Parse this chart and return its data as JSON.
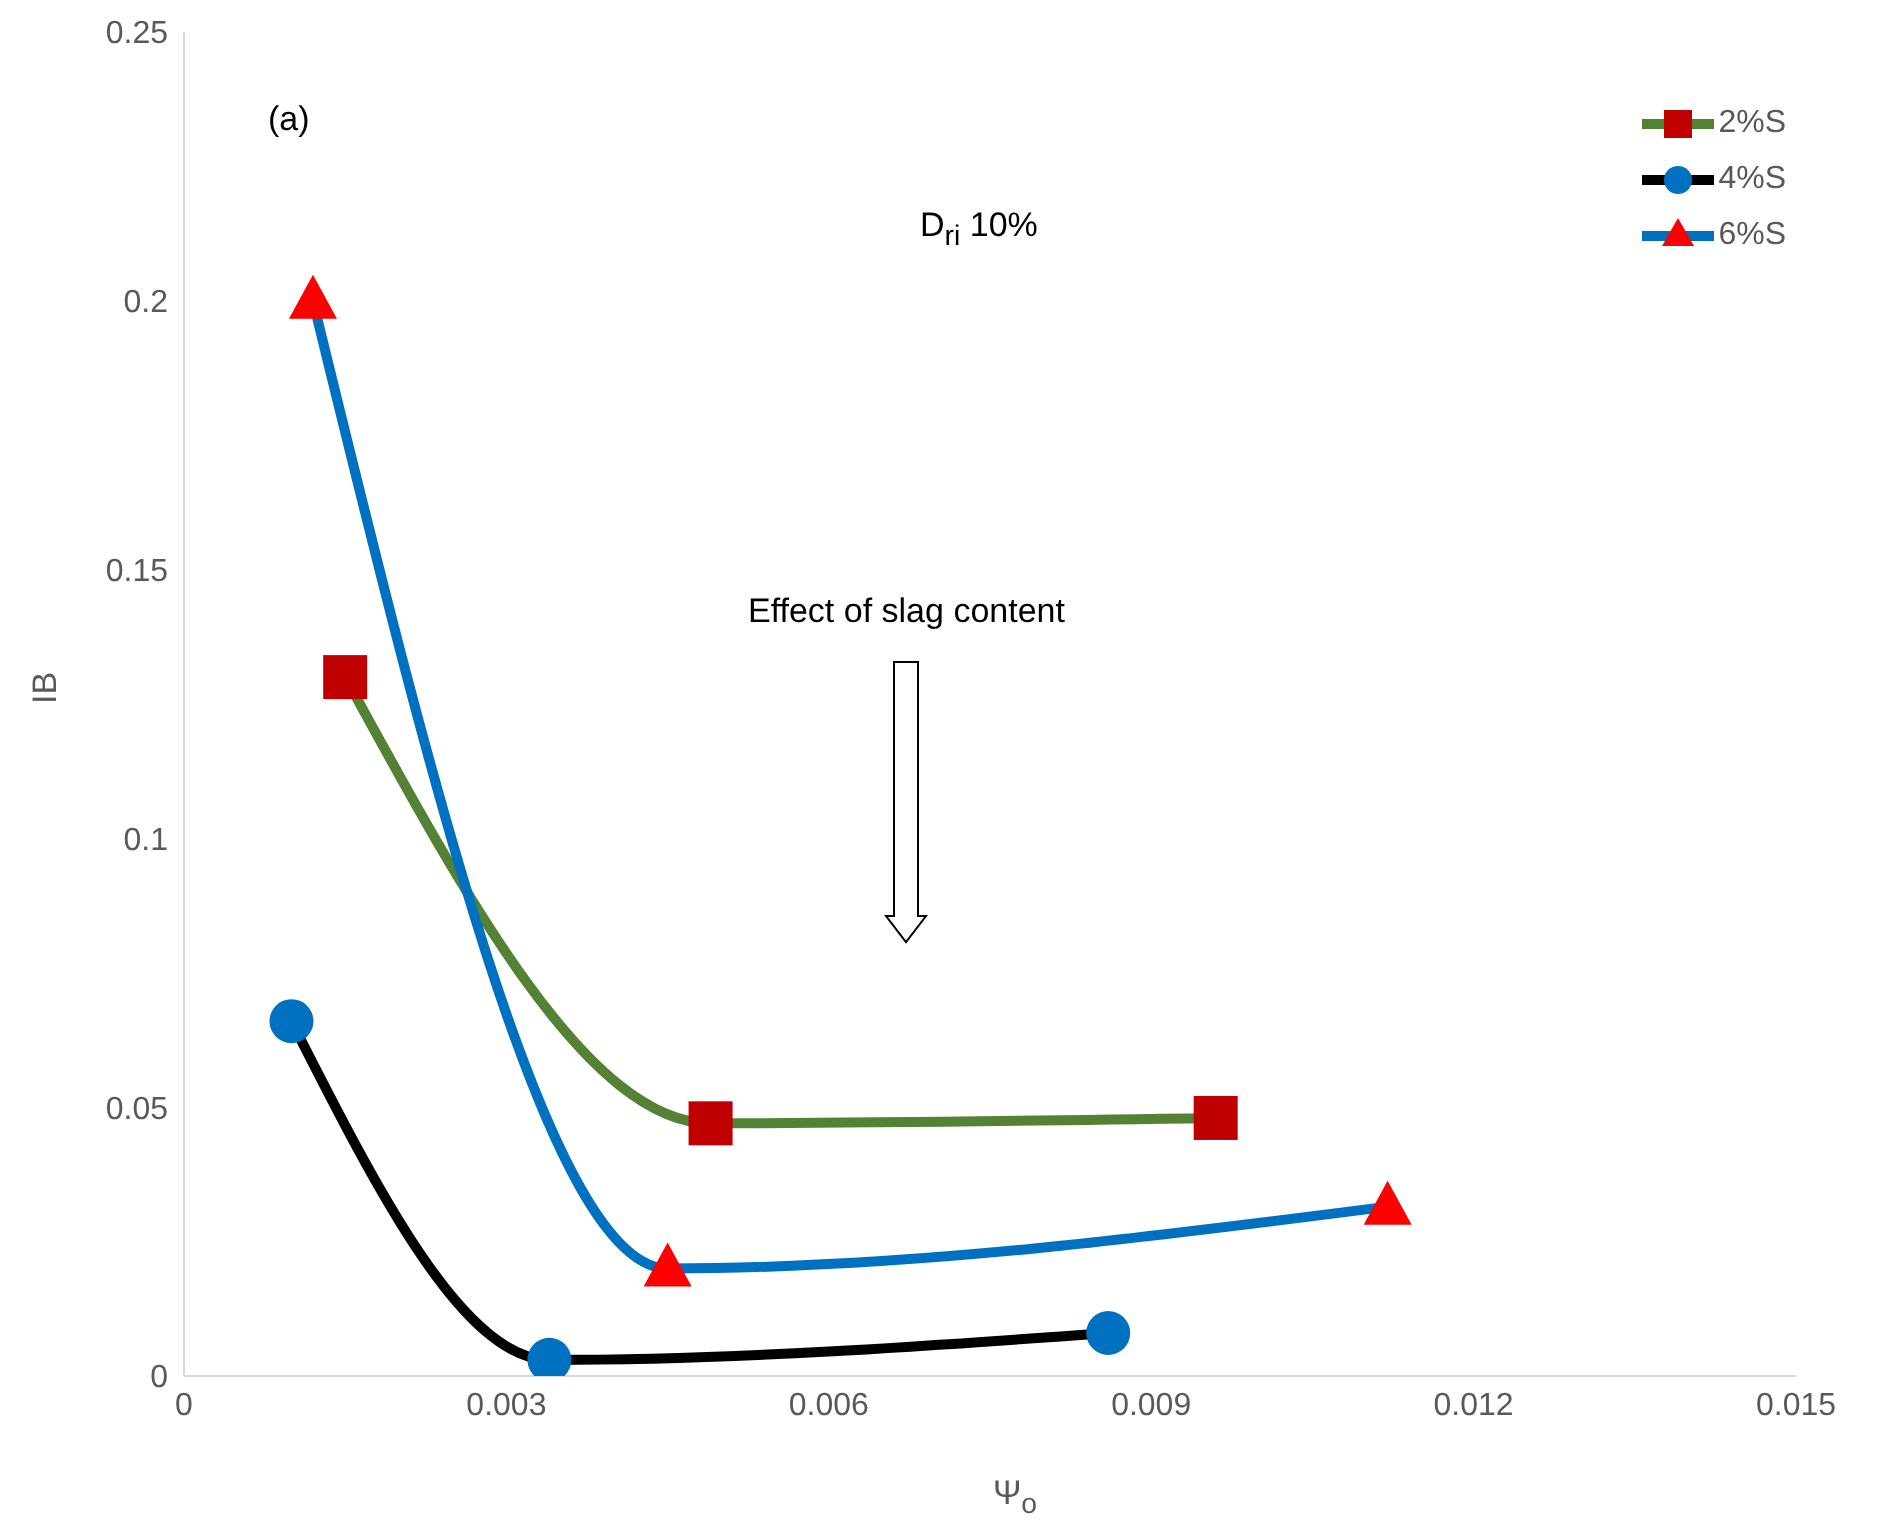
{
  "chart_data": {
    "type": "line",
    "xlabel": "Ψ$_{o}$",
    "ylabel": "IB",
    "annotations": [
      "(a)",
      "D$_{ri}$ 10%",
      "Effect of slag content"
    ],
    "xlim": [
      0,
      0.015
    ],
    "xticks": [
      0,
      0.003,
      0.006,
      0.009,
      0.012,
      0.015
    ],
    "ylim": [
      0,
      0.25
    ],
    "yticks": [
      0,
      0.05,
      0.1,
      0.15,
      0.2,
      0.25
    ],
    "grid": false,
    "legend": "top right",
    "series": [
      {
        "name": "2%S",
        "color": "#548235",
        "colors": [
          "#c00000",
          "#c00000",
          "#c00000"
        ],
        "marker": "square",
        "x": [
          0.0015,
          0.0049,
          0.0096
        ],
        "values": [
          0.13,
          0.047,
          0.048
        ]
      },
      {
        "name": "4%S",
        "color": "#000000",
        "colors": [
          "#0070c0",
          "#0070c0",
          "#0070c0"
        ],
        "marker": "circle",
        "x": [
          0.001,
          0.0034,
          0.0086
        ],
        "values": [
          0.066,
          0.003,
          0.008
        ]
      },
      {
        "name": "6%S",
        "color": "#0070c0",
        "colors": [
          "#ff0000",
          "#ff0000",
          "#ff0000"
        ],
        "marker": "triangle",
        "x": [
          0.0012,
          0.0045,
          0.0112
        ],
        "values": [
          0.2,
          0.02,
          0.0315
        ]
      }
    ]
  }
}
